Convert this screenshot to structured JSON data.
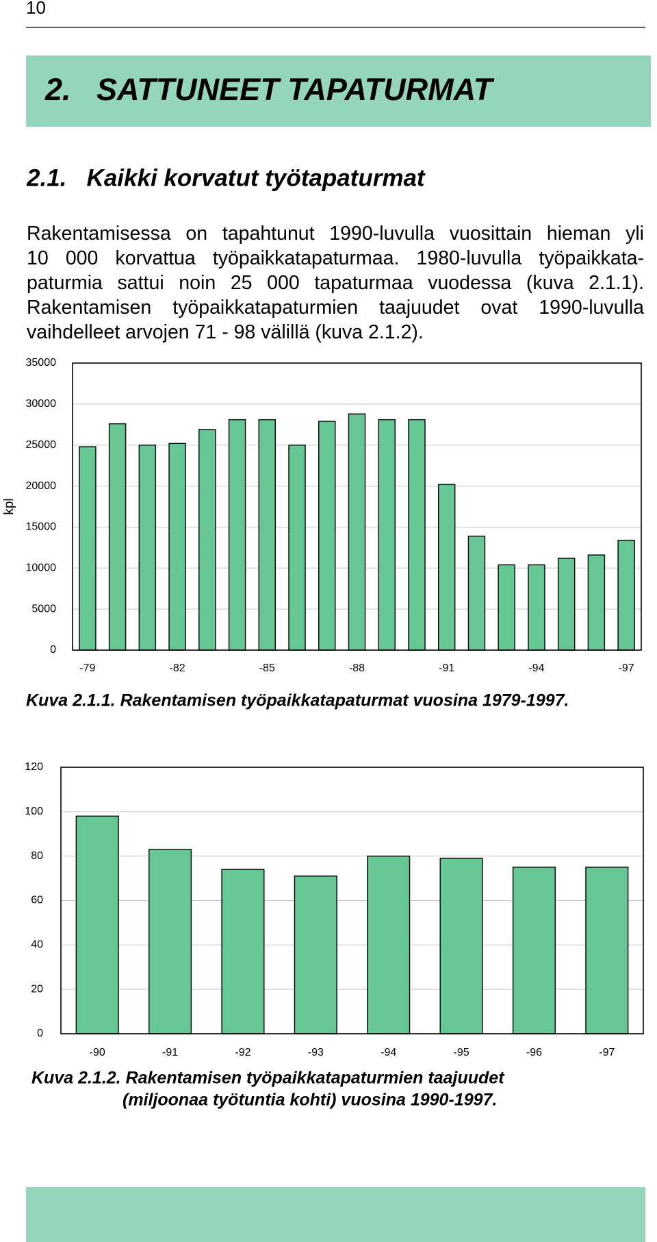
{
  "page_number": "10",
  "section_title": "2.   SATTUNEET TAPATURMAT",
  "subsection_title": "2.1.   Kaikki korvatut työtapaturmat",
  "paragraph": [
    "Rakentamisessa on tapahtunut 1990-luvulla vuosittain hieman yli",
    "10 000 korvattua työpaikkatapaturmaa. 1980-luvulla työpaikkata-",
    "paturmia sattui noin 25 000 tapaturmaa vuodessa (kuva 2.1.1).",
    "Rakentamisen työpaikkatapaturmien taajuudet ovat 1990-luvulla",
    "vaihdelleet arvojen 71 - 98 välillä (kuva 2.1.2)."
  ],
  "chart_data": [
    {
      "type": "bar",
      "y_label": "kpl",
      "caption": [
        "Kuva 2.1.1. Rakentamisen työpaikkatapaturmat vuosina 1979-1997."
      ],
      "categories": [
        "-79",
        null,
        null,
        "-82",
        null,
        null,
        "-85",
        null,
        null,
        "-88",
        null,
        null,
        "-91",
        null,
        null,
        "-94",
        null,
        null,
        "-97"
      ],
      "values": [
        24800,
        27600,
        25000,
        25200,
        26900,
        28100,
        28100,
        25000,
        27900,
        28800,
        28100,
        28100,
        20200,
        13900,
        10400,
        10400,
        11200,
        11600,
        13400
      ],
      "color": "#66c795",
      "ylim": [
        0,
        35000
      ],
      "yticks": [
        0,
        5000,
        10000,
        15000,
        20000,
        25000,
        30000,
        35000
      ],
      "grid": true
    },
    {
      "type": "bar",
      "caption": [
        "Kuva 2.1.2. Rakentamisen työpaikkatapaturmien taajuudet",
        "(miljoonaa työtuntia kohti) vuosina 1990-1997."
      ],
      "categories": [
        "-90",
        "-91",
        "-92",
        "-93",
        "-94",
        "-95",
        "-96",
        "-97"
      ],
      "values": [
        98,
        83,
        74,
        71,
        80,
        79,
        75,
        75
      ],
      "color": "#66c795",
      "ylim": [
        0,
        120
      ],
      "yticks": [
        0,
        20,
        40,
        60,
        80,
        100,
        120
      ],
      "grid": true
    }
  ]
}
